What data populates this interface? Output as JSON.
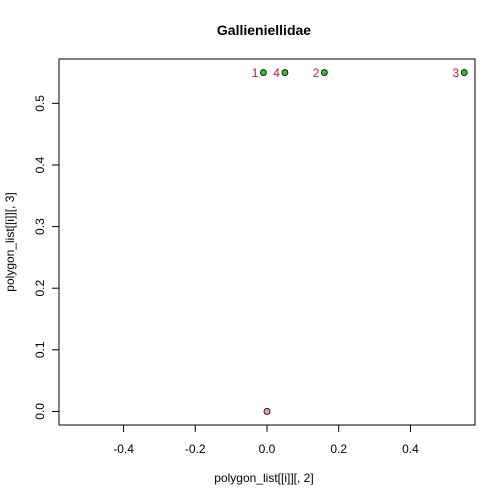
{
  "chart_data": {
    "type": "scatter",
    "title": "Gallieniellidae",
    "xlabel": "polygon_list[[i]][, 2]",
    "ylabel": "polygon_list[[i]][, 3]",
    "xlim": [
      -0.58,
      0.58
    ],
    "ylim": [
      -0.022,
      0.572
    ],
    "x_ticks": [
      -0.4,
      -0.2,
      0.0,
      0.2,
      0.4
    ],
    "x_tick_labels": [
      "-0.4",
      "-0.2",
      "0.0",
      "0.2",
      "0.4"
    ],
    "y_ticks": [
      0.0,
      0.1,
      0.2,
      0.3,
      0.4,
      0.5
    ],
    "y_tick_labels": [
      "0.0",
      "0.1",
      "0.2",
      "0.3",
      "0.4",
      "0.5"
    ],
    "grid": false,
    "series": [
      {
        "points": [
          {
            "x": -0.01,
            "y": 0.55,
            "label": "1"
          },
          {
            "x": 0.16,
            "y": 0.55,
            "label": "2"
          },
          {
            "x": 0.55,
            "y": 0.55,
            "label": "3"
          },
          {
            "x": 0.05,
            "y": 0.55,
            "label": "4"
          }
        ],
        "color": "#22cc22"
      },
      {
        "points": [
          {
            "x": 0.0,
            "y": 0.0,
            "label": ""
          }
        ],
        "color": "#e8a0b8"
      }
    ],
    "label_color": "#e0102a"
  }
}
